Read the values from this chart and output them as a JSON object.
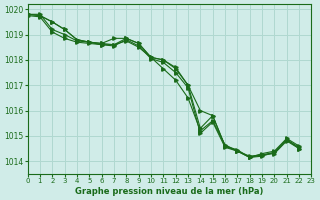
{
  "title": "Graphe pression niveau de la mer (hPa)",
  "bg_color": "#d0ece8",
  "line_color": "#1a6b1a",
  "grid_color": "#b0d8d0",
  "xlim": [
    0,
    23
  ],
  "ylim": [
    1013.5,
    1020.2
  ],
  "xticks": [
    0,
    1,
    2,
    3,
    4,
    5,
    6,
    7,
    8,
    9,
    10,
    11,
    12,
    13,
    14,
    15,
    16,
    17,
    18,
    19,
    20,
    21,
    22,
    23
  ],
  "yticks": [
    1014,
    1015,
    1016,
    1017,
    1018,
    1019,
    1020
  ],
  "series": [
    [
      1019.8,
      1019.75,
      1019.5,
      1019.2,
      1018.8,
      1018.7,
      1018.65,
      1018.6,
      1018.85,
      1018.65,
      1018.1,
      1018.0,
      1017.7,
      1017.0,
      1015.3,
      1015.8,
      1014.6,
      1014.45,
      1014.15,
      1014.2,
      1014.35,
      1014.85,
      1014.55,
      null
    ],
    [
      1019.8,
      1019.75,
      1019.5,
      1019.2,
      1018.8,
      1018.7,
      1018.65,
      1018.85,
      1018.85,
      1018.65,
      1018.1,
      1018.0,
      1017.65,
      1017.0,
      1016.0,
      1015.8,
      1014.6,
      1014.4,
      1014.15,
      1014.3,
      1014.4,
      1014.9,
      1014.6,
      null
    ],
    [
      1019.75,
      1019.7,
      1019.1,
      1018.85,
      1018.7,
      1018.65,
      1018.6,
      1018.6,
      1018.75,
      1018.5,
      1018.1,
      1017.65,
      1017.2,
      1016.5,
      1015.2,
      1015.6,
      1014.65,
      1014.4,
      1014.15,
      1014.25,
      1014.35,
      1014.85,
      1014.5,
      null
    ],
    [
      1019.8,
      1019.8,
      1019.2,
      1019.0,
      1018.75,
      1018.7,
      1018.6,
      1018.55,
      1018.8,
      1018.55,
      1018.05,
      1017.9,
      1017.5,
      1016.9,
      1015.1,
      1015.55,
      1014.55,
      1014.4,
      1014.2,
      1014.25,
      1014.3,
      1014.8,
      1014.5,
      null
    ]
  ]
}
